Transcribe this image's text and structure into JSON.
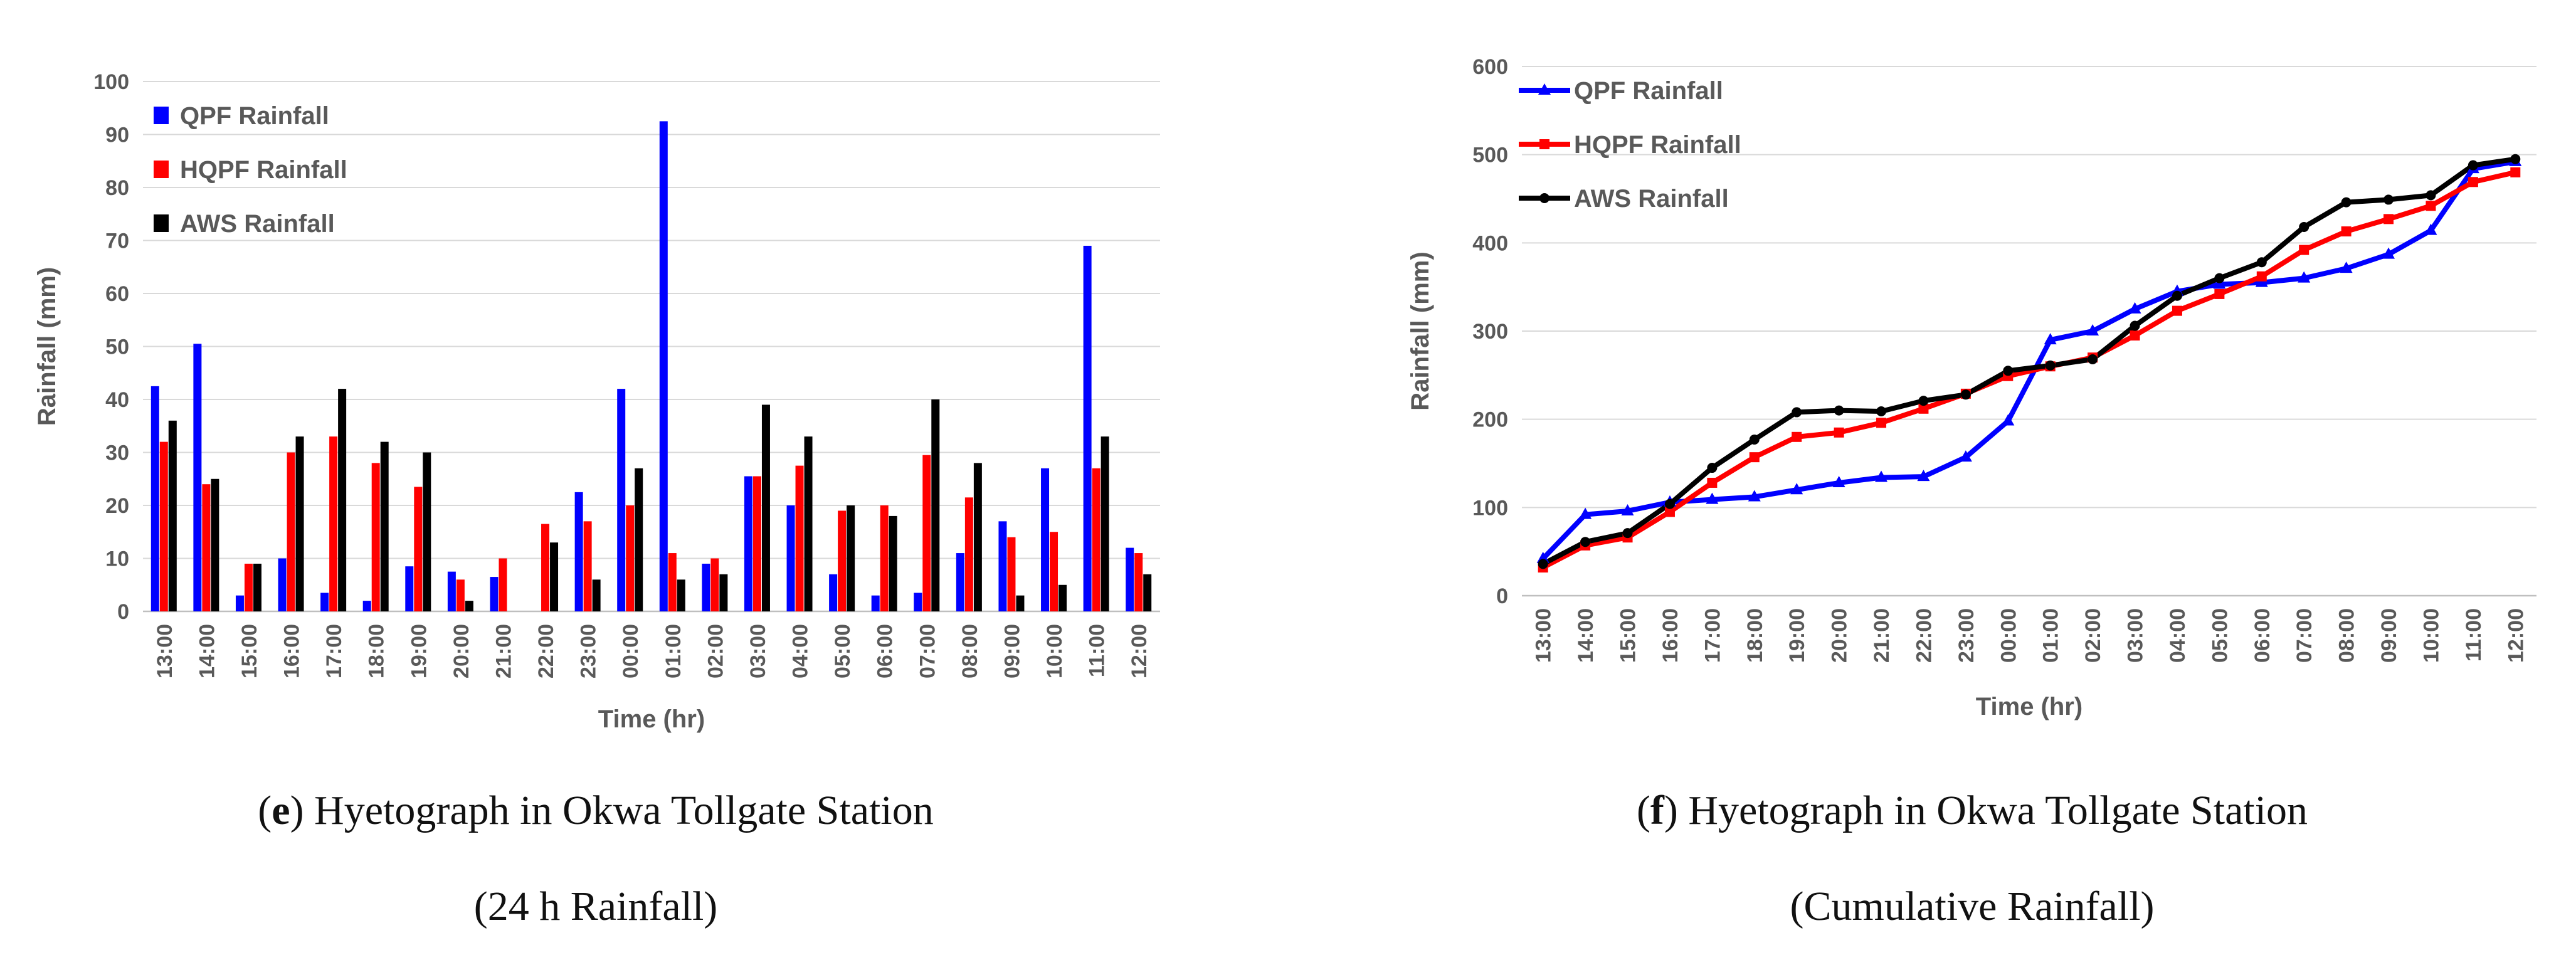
{
  "chart_data": [
    {
      "type": "bar",
      "title": "",
      "xlabel": "Time (hr)",
      "ylabel": "Rainfall (mm)",
      "ylim": [
        0,
        100
      ],
      "yticks": [
        "0",
        "10",
        "20",
        "30",
        "40",
        "50",
        "60",
        "70",
        "80",
        "90",
        "100"
      ],
      "legend_position": "top-left",
      "categories": [
        "13:00",
        "14:00",
        "15:00",
        "16:00",
        "17:00",
        "18:00",
        "19:00",
        "20:00",
        "21:00",
        "22:00",
        "23:00",
        "00:00",
        "01:00",
        "02:00",
        "03:00",
        "04:00",
        "05:00",
        "06:00",
        "07:00",
        "08:00",
        "09:00",
        "10:00",
        "11:00",
        "12:00"
      ],
      "series": [
        {
          "name": "QPF Rainfall",
          "color": "#0000FF",
          "values": [
            42.5,
            50.5,
            3,
            10,
            3.5,
            2,
            8.5,
            7.5,
            6.5,
            0,
            22.5,
            42,
            92.5,
            9,
            25.5,
            20,
            7,
            3,
            3.5,
            11,
            17,
            27,
            69,
            12
          ]
        },
        {
          "name": "HQPF Rainfall",
          "color": "#FF0000",
          "values": [
            32,
            24,
            9,
            30,
            33,
            28,
            23.5,
            6,
            10,
            16.5,
            17,
            20,
            11,
            10,
            25.5,
            27.5,
            19,
            20,
            29.5,
            21.5,
            14,
            15,
            27,
            11
          ]
        },
        {
          "name": "AWS Rainfall",
          "color": "#000000",
          "values": [
            36,
            25,
            9,
            33,
            42,
            32,
            30,
            2,
            0,
            13,
            6,
            27,
            6,
            7,
            39,
            33,
            20,
            18,
            40,
            28,
            3,
            5,
            33,
            7
          ]
        }
      ]
    },
    {
      "type": "line",
      "title": "",
      "xlabel": "Time (hr)",
      "ylabel": "Rainfall (mm)",
      "ylim": [
        0,
        600
      ],
      "yticks": [
        "0",
        "100",
        "200",
        "300",
        "400",
        "500",
        "600"
      ],
      "legend_position": "top-left",
      "categories": [
        "13:00",
        "14:00",
        "15:00",
        "16:00",
        "17:00",
        "18:00",
        "19:00",
        "20:00",
        "21:00",
        "22:00",
        "23:00",
        "00:00",
        "01:00",
        "02:00",
        "03:00",
        "04:00",
        "05:00",
        "06:00",
        "07:00",
        "08:00",
        "09:00",
        "10:00",
        "11:00",
        "12:00"
      ],
      "series": [
        {
          "name": "QPF Rainfall",
          "color": "#0000FF",
          "marker": "triangle",
          "values": [
            42,
            92,
            96,
            106,
            109,
            112,
            120,
            128,
            134,
            135,
            157,
            198,
            290,
            300,
            325,
            345,
            353,
            355,
            360,
            371,
            387,
            414,
            484,
            492
          ]
        },
        {
          "name": "HQPF Rainfall",
          "color": "#FF0000",
          "marker": "square",
          "values": [
            32,
            57,
            66,
            95,
            128,
            157,
            180,
            185,
            196,
            212,
            229,
            249,
            260,
            270,
            295,
            323,
            342,
            362,
            392,
            413,
            427,
            442,
            469,
            480
          ]
        },
        {
          "name": "AWS Rainfall",
          "color": "#000000",
          "marker": "circle",
          "values": [
            36,
            61,
            71,
            104,
            145,
            177,
            208,
            210,
            209,
            221,
            228,
            255,
            261,
            268,
            306,
            340,
            360,
            378,
            418,
            446,
            449,
            454,
            488,
            495
          ]
        }
      ]
    }
  ],
  "captions": [
    {
      "label": "e",
      "line1": ") Hyetograph in Okwa Tollgate Station",
      "line2": "(24 h Rainfall)"
    },
    {
      "label": "f",
      "line1": ") Hyetograph in Okwa Tollgate Station",
      "line2": "(Cumulative Rainfall)"
    }
  ]
}
